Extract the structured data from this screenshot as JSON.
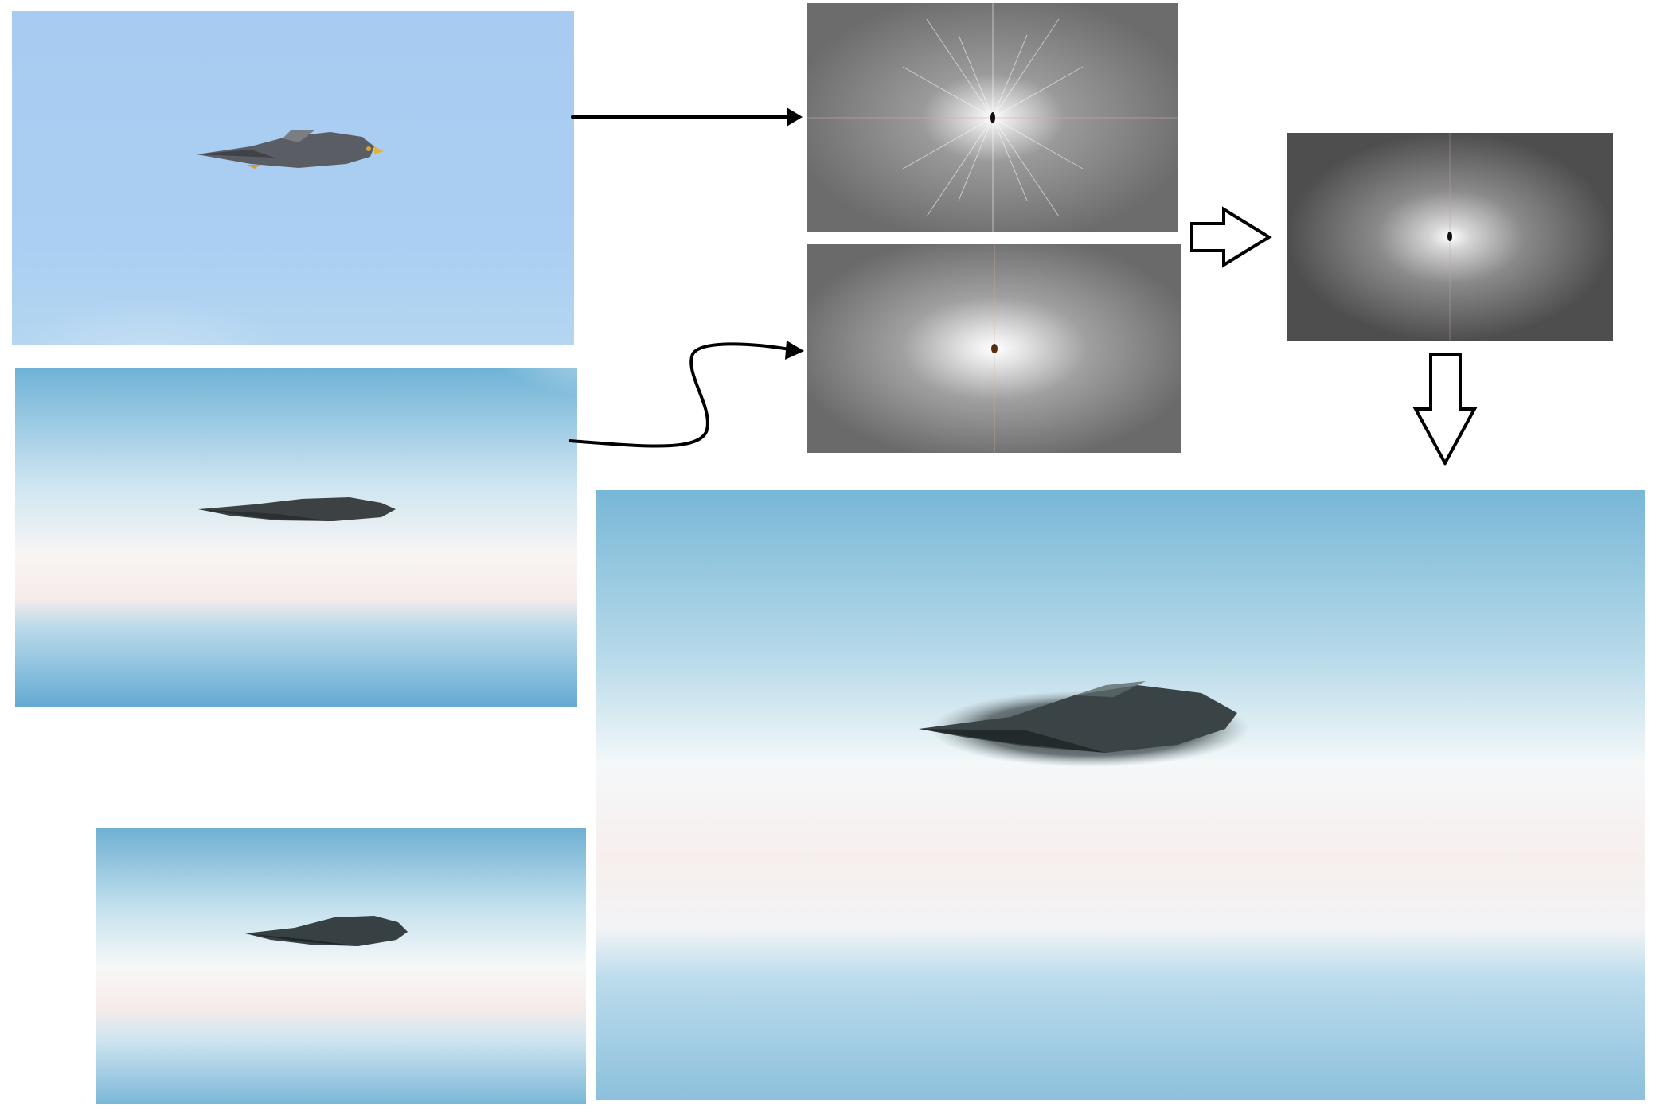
{
  "figure": {
    "kind": "pipeline-diagram",
    "text_labels": [],
    "panels": [
      "falcon-photo",
      "stealth-bomber-photo",
      "falcon-fourier-spectrum",
      "bomber-fourier-spectrum",
      "combined-fourier-spectrum",
      "hybrid-result-large",
      "hybrid-result-small"
    ]
  },
  "colors": {
    "sky_blue": "#a9cdf2",
    "cloud_blue": "#6fb2d6",
    "spectrum_gray": "#6e6e6e",
    "arrow_stroke": "#000000"
  }
}
